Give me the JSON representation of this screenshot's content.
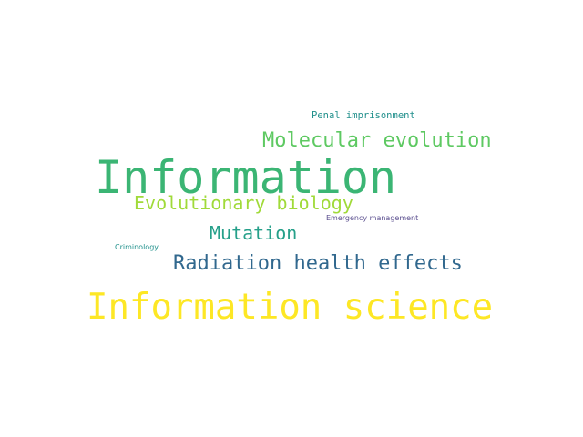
{
  "words": [
    {
      "text": "Information",
      "color": "#3bb574"
    },
    {
      "text": "Information science",
      "color": "#fde725"
    },
    {
      "text": "Molecular evolution",
      "color": "#5ec962"
    },
    {
      "text": "Evolutionary biology",
      "color": "#a0da39"
    },
    {
      "text": "Mutation",
      "color": "#26a08a"
    },
    {
      "text": "Radiation health effects",
      "color": "#31688e"
    },
    {
      "text": "Penal imprisonment",
      "color": "#22908c"
    },
    {
      "text": "Emergency management",
      "color": "#5b4f8f"
    },
    {
      "text": "Criminology",
      "color": "#21918c"
    }
  ]
}
